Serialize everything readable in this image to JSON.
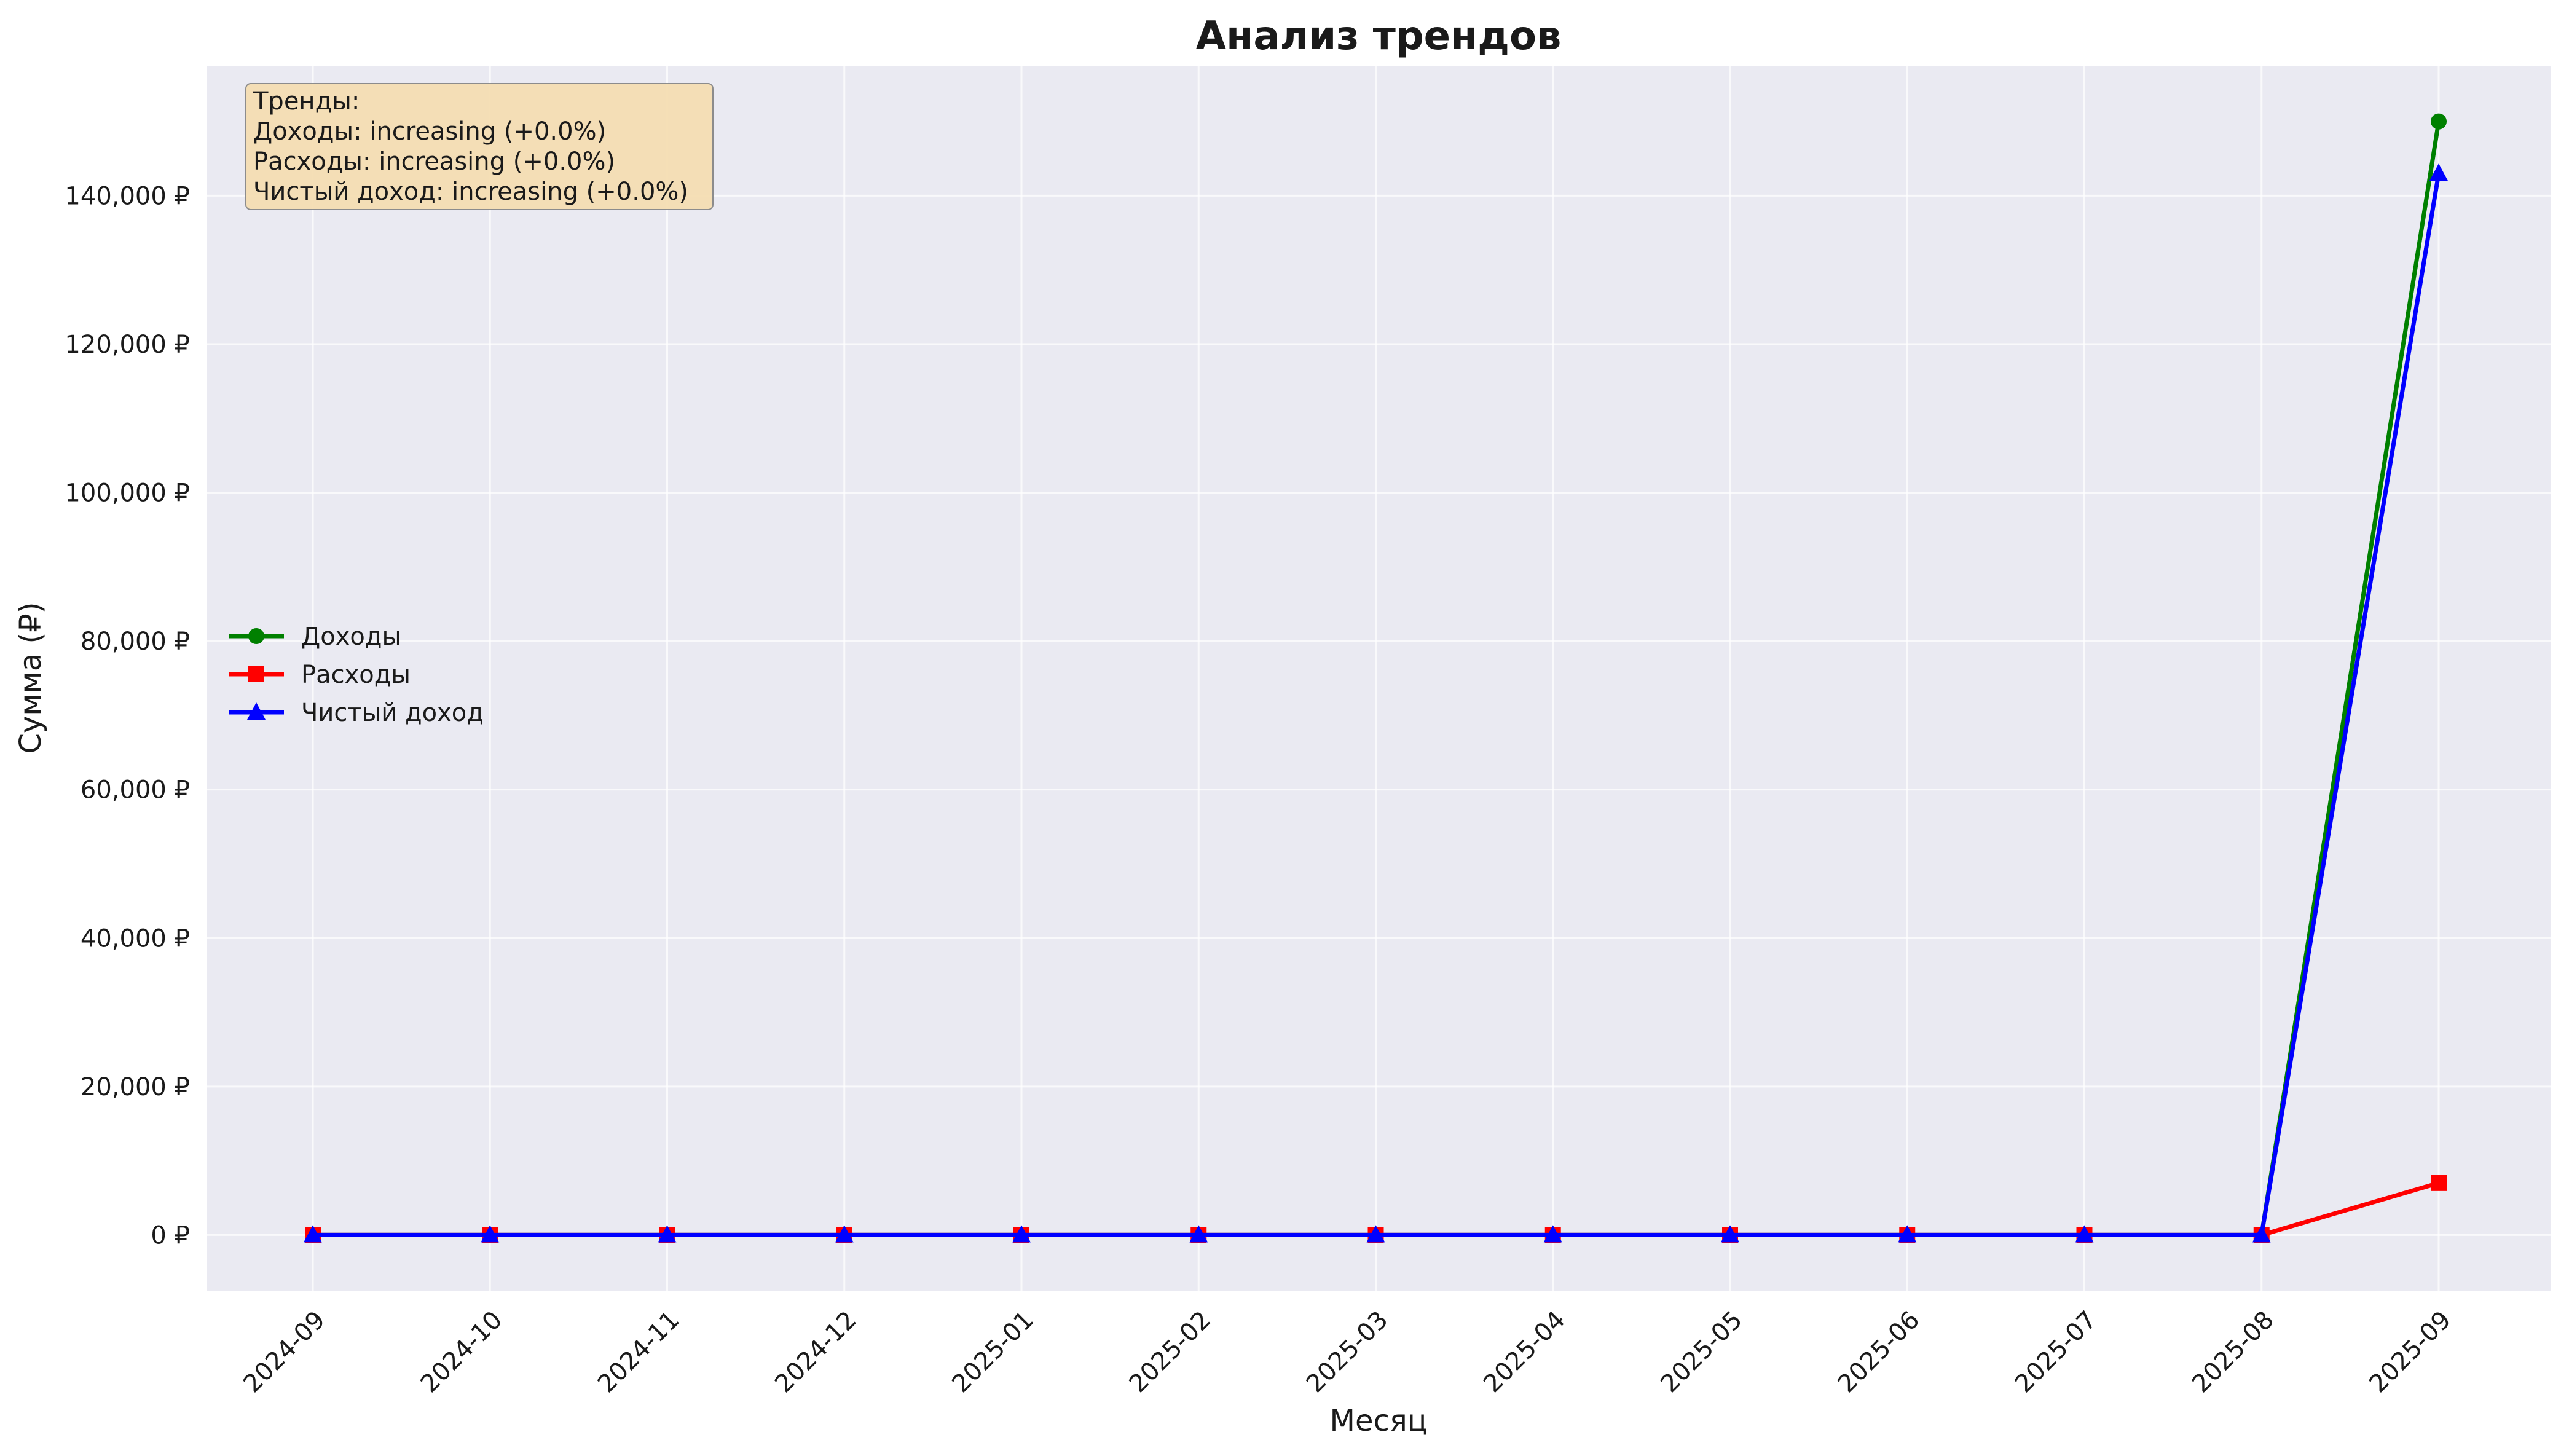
{
  "chart_data": {
    "type": "line",
    "title": "Анализ трендов",
    "xlabel": "Месяц",
    "ylabel": "Сумма (₽)",
    "categories": [
      "2024-09",
      "2024-10",
      "2024-11",
      "2024-12",
      "2025-01",
      "2025-02",
      "2025-03",
      "2025-04",
      "2025-05",
      "2025-06",
      "2025-07",
      "2025-08",
      "2025-09"
    ],
    "ylim": [
      -7500,
      157500
    ],
    "yticks": [
      0,
      20000,
      40000,
      60000,
      80000,
      100000,
      120000,
      140000
    ],
    "ytick_labels": [
      "0 ₽",
      "20,000 ₽",
      "40,000 ₽",
      "60,000 ₽",
      "80,000 ₽",
      "100,000 ₽",
      "120,000 ₽",
      "140,000 ₽"
    ],
    "grid": true,
    "legend_position": "center-left",
    "series": [
      {
        "name": "Доходы",
        "color": "#008000",
        "marker": "circle",
        "values": [
          0,
          0,
          0,
          0,
          0,
          0,
          0,
          0,
          0,
          0,
          0,
          0,
          150000
        ]
      },
      {
        "name": "Расходы",
        "color": "#ff0000",
        "marker": "square",
        "values": [
          0,
          0,
          0,
          0,
          0,
          0,
          0,
          0,
          0,
          0,
          0,
          0,
          7000
        ]
      },
      {
        "name": "Чистый доход",
        "color": "#0000ff",
        "marker": "triangle",
        "values": [
          0,
          0,
          0,
          0,
          0,
          0,
          0,
          0,
          0,
          0,
          0,
          0,
          143000
        ]
      }
    ],
    "annotation": {
      "lines": [
        "Тренды:",
        "Доходы: increasing (+0.0%)",
        "Расходы: increasing (+0.0%)",
        "Чистый доход: increasing (+0.0%)"
      ],
      "position": "top-left"
    },
    "colors": {
      "plot_bg": "#eaeaf2",
      "grid": "#ffffff",
      "note_bg": "#f5deb3"
    }
  }
}
